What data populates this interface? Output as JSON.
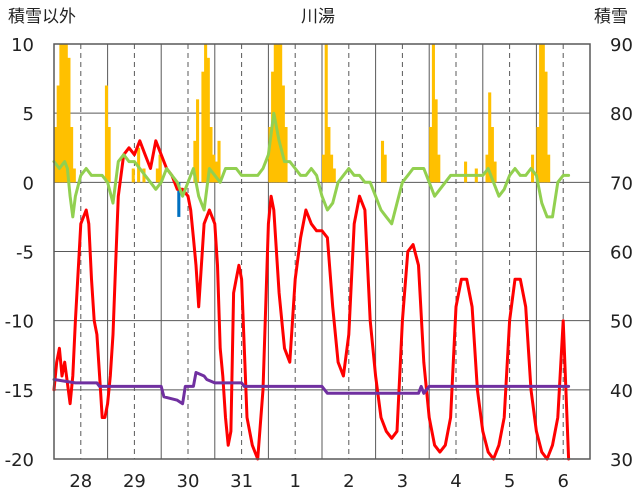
{
  "chart_data": {
    "type": "line",
    "title": "川湯",
    "left_axis_label": "積雪以外",
    "right_axis_label": "積雪",
    "ylim_left": [
      -20,
      10
    ],
    "yticks_left": [
      "10",
      "5",
      "0",
      "-5",
      "-10",
      "-15",
      "-20"
    ],
    "ylim_right": [
      30,
      90
    ],
    "yticks_right": [
      "90",
      "80",
      "70",
      "60",
      "50",
      "40",
      "30"
    ],
    "x_domain": [
      0,
      10
    ],
    "day_labels": [
      "28",
      "29",
      "30",
      "31",
      "1",
      "2",
      "3",
      "4",
      "5",
      "6"
    ],
    "grid": true,
    "colors": {
      "temperature": "#ff0000",
      "wind": "#92d050",
      "snow_depth": "#7030a0",
      "precip_snow": "#ffc000",
      "precip_rain": "#0070c0",
      "frame": "#595959",
      "grid": "#595959"
    },
    "precip_bars": [
      {
        "x": 0.0,
        "v": 4.0
      },
      {
        "x": 0.05,
        "v": 7.0
      },
      {
        "x": 0.1,
        "v": 10.0
      },
      {
        "x": 0.15,
        "v": 10.0
      },
      {
        "x": 0.2,
        "v": 10.0
      },
      {
        "x": 0.25,
        "v": 9.0
      },
      {
        "x": 0.3,
        "v": 4.0
      },
      {
        "x": 0.35,
        "v": 1.0
      },
      {
        "x": 0.95,
        "v": 7.0
      },
      {
        "x": 1.0,
        "v": 4.0
      },
      {
        "x": 1.45,
        "v": 1.0
      },
      {
        "x": 1.55,
        "v": 2.5
      },
      {
        "x": 1.65,
        "v": 1.0
      },
      {
        "x": 1.9,
        "v": 1.0
      },
      {
        "x": 1.95,
        "v": 2.0
      },
      {
        "x": 2.3,
        "v": -2.5,
        "kind": "rain"
      },
      {
        "x": 2.6,
        "v": 3.0
      },
      {
        "x": 2.65,
        "v": 6.0
      },
      {
        "x": 2.75,
        "v": 8.0
      },
      {
        "x": 2.8,
        "v": 10.0
      },
      {
        "x": 2.85,
        "v": 9.0
      },
      {
        "x": 2.9,
        "v": 4.0
      },
      {
        "x": 2.95,
        "v": 2.0
      },
      {
        "x": 3.0,
        "v": 1.5
      },
      {
        "x": 3.05,
        "v": 3.0
      },
      {
        "x": 4.0,
        "v": 4.0
      },
      {
        "x": 4.05,
        "v": 8.0
      },
      {
        "x": 4.1,
        "v": 10.0
      },
      {
        "x": 4.15,
        "v": 10.0
      },
      {
        "x": 4.2,
        "v": 10.0
      },
      {
        "x": 4.25,
        "v": 7.0
      },
      {
        "x": 4.3,
        "v": 4.0
      },
      {
        "x": 5.0,
        "v": 2.0
      },
      {
        "x": 5.05,
        "v": 10.0
      },
      {
        "x": 5.1,
        "v": 4.0
      },
      {
        "x": 5.15,
        "v": 2.0
      },
      {
        "x": 5.2,
        "v": 1.0
      },
      {
        "x": 6.1,
        "v": 3.0
      },
      {
        "x": 6.15,
        "v": 2.0
      },
      {
        "x": 7.0,
        "v": 4.0
      },
      {
        "x": 7.05,
        "v": 10.0
      },
      {
        "x": 7.1,
        "v": 6.0
      },
      {
        "x": 7.15,
        "v": 2.0
      },
      {
        "x": 7.65,
        "v": 1.5
      },
      {
        "x": 7.85,
        "v": 1.0
      },
      {
        "x": 8.05,
        "v": 2.0
      },
      {
        "x": 8.1,
        "v": 6.5
      },
      {
        "x": 8.15,
        "v": 4.0
      },
      {
        "x": 8.2,
        "v": 1.5
      },
      {
        "x": 8.9,
        "v": 2.0
      },
      {
        "x": 9.0,
        "v": 4.0
      },
      {
        "x": 9.05,
        "v": 10.0
      },
      {
        "x": 9.1,
        "v": 10.0
      },
      {
        "x": 9.15,
        "v": 8.0
      },
      {
        "x": 9.2,
        "v": 2.0
      }
    ],
    "series": [
      {
        "name": "",
        "color": "#ff0000",
        "axis": "left",
        "x": [
          0.0,
          0.05,
          0.1,
          0.15,
          0.2,
          0.3,
          0.35,
          0.4,
          0.5,
          0.6,
          0.65,
          0.7,
          0.75,
          0.8,
          0.85,
          0.9,
          0.95,
          1.0,
          1.05,
          1.1,
          1.15,
          1.2,
          1.3,
          1.4,
          1.5,
          1.6,
          1.7,
          1.8,
          1.9,
          2.0,
          2.1,
          2.2,
          2.3,
          2.4,
          2.5,
          2.55,
          2.6,
          2.65,
          2.7,
          2.75,
          2.8,
          2.9,
          3.0,
          3.05,
          3.1,
          3.15,
          3.2,
          3.25,
          3.3,
          3.35,
          3.4,
          3.45,
          3.5,
          3.55,
          3.6,
          3.7,
          3.8,
          3.9,
          4.0,
          4.05,
          4.1,
          4.2,
          4.3,
          4.4,
          4.5,
          4.6,
          4.7,
          4.8,
          4.9,
          5.0,
          5.1,
          5.2,
          5.3,
          5.4,
          5.5,
          5.6,
          5.7,
          5.8,
          5.9,
          6.0,
          6.1,
          6.2,
          6.3,
          6.4,
          6.5,
          6.6,
          6.7,
          6.8,
          6.9,
          7.0,
          7.1,
          7.2,
          7.3,
          7.4,
          7.5,
          7.6,
          7.7,
          7.8,
          7.9,
          8.0,
          8.1,
          8.2,
          8.3,
          8.4,
          8.5,
          8.6,
          8.7,
          8.8,
          8.9,
          9.0,
          9.1,
          9.2,
          9.3,
          9.4,
          9.5,
          9.6
        ],
        "values": [
          -15.0,
          -13.0,
          -12.0,
          -14.0,
          -13.0,
          -16.0,
          -14.0,
          -10.0,
          -3.0,
          -2.0,
          -3.0,
          -7.0,
          -10.0,
          -11.0,
          -14.0,
          -17.0,
          -17.0,
          -16.0,
          -14.0,
          -11.0,
          -6.0,
          -1.0,
          2.0,
          2.5,
          2.0,
          3.0,
          2.0,
          1.0,
          3.0,
          2.0,
          1.0,
          0.5,
          -0.5,
          -0.5,
          -1.0,
          -2.0,
          -4.0,
          -6.0,
          -9.0,
          -6.0,
          -3.0,
          -2.0,
          -3.0,
          -6.0,
          -12.0,
          -14.0,
          -17.0,
          -19.0,
          -18.0,
          -8.0,
          -7.0,
          -6.0,
          -7.0,
          -12.0,
          -17.0,
          -19.0,
          -20.0,
          -15.0,
          -3.0,
          -1.0,
          -2.0,
          -8.0,
          -12.0,
          -13.0,
          -7.0,
          -4.0,
          -2.0,
          -3.0,
          -3.5,
          -3.5,
          -4.0,
          -9.0,
          -13.0,
          -14.0,
          -11.0,
          -3.0,
          -1.0,
          -2.0,
          -10.0,
          -14.0,
          -17.0,
          -18.0,
          -18.5,
          -18.0,
          -10.0,
          -5.0,
          -4.5,
          -6.0,
          -13.0,
          -17.0,
          -19.0,
          -19.5,
          -19.0,
          -17.0,
          -9.0,
          -7.0,
          -7.0,
          -9.0,
          -15.0,
          -18.0,
          -19.5,
          -20.0,
          -19.0,
          -17.0,
          -10.0,
          -7.0,
          -7.0,
          -9.0,
          -15.0,
          -18.0,
          -19.5,
          -20.0,
          -19.0,
          -17.0,
          -10.0,
          -20.0
        ]
      },
      {
        "name": "",
        "color": "#92d050",
        "axis": "left",
        "x": [
          0.0,
          0.1,
          0.2,
          0.25,
          0.3,
          0.35,
          0.4,
          0.5,
          0.6,
          0.7,
          0.8,
          0.9,
          1.0,
          1.1,
          1.2,
          1.3,
          1.4,
          1.5,
          1.6,
          1.7,
          1.8,
          1.9,
          2.0,
          2.1,
          2.2,
          2.3,
          2.4,
          2.5,
          2.6,
          2.7,
          2.8,
          2.9,
          3.0,
          3.1,
          3.2,
          3.3,
          3.4,
          3.5,
          3.6,
          3.7,
          3.8,
          3.9,
          4.0,
          4.1,
          4.2,
          4.3,
          4.4,
          4.5,
          4.6,
          4.7,
          4.8,
          4.9,
          5.0,
          5.1,
          5.2,
          5.3,
          5.4,
          5.5,
          5.6,
          5.7,
          5.8,
          5.9,
          6.0,
          6.1,
          6.2,
          6.3,
          6.4,
          6.5,
          6.6,
          6.7,
          6.8,
          6.9,
          7.0,
          7.1,
          7.2,
          7.3,
          7.4,
          7.5,
          7.6,
          7.7,
          7.8,
          7.9,
          8.0,
          8.1,
          8.2,
          8.3,
          8.4,
          8.5,
          8.6,
          8.7,
          8.8,
          8.9,
          9.0,
          9.1,
          9.2,
          9.3,
          9.4,
          9.5,
          9.6
        ],
        "values": [
          1.5,
          1.0,
          1.5,
          1.0,
          -1.0,
          -2.5,
          -1.0,
          0.5,
          1.0,
          0.5,
          0.5,
          0.5,
          0.0,
          -1.5,
          1.5,
          2.0,
          1.5,
          1.5,
          1.0,
          0.5,
          0.0,
          -0.5,
          0.0,
          1.0,
          0.5,
          0.0,
          -1.0,
          0.0,
          1.0,
          -1.0,
          -2.0,
          1.0,
          0.5,
          0.0,
          1.0,
          1.0,
          1.0,
          0.5,
          0.5,
          0.5,
          0.5,
          1.0,
          2.0,
          5.0,
          3.0,
          1.5,
          1.5,
          1.0,
          0.5,
          0.5,
          1.0,
          0.5,
          -1.0,
          -2.0,
          -1.5,
          0.0,
          0.5,
          1.0,
          0.5,
          0.5,
          0.0,
          0.0,
          -1.0,
          -2.0,
          -2.5,
          -3.0,
          -1.5,
          0.0,
          0.5,
          1.0,
          1.0,
          1.0,
          0.0,
          -1.0,
          -0.5,
          0.0,
          0.5,
          0.5,
          0.5,
          0.5,
          0.5,
          0.5,
          0.5,
          1.0,
          0.0,
          -1.0,
          -0.5,
          0.5,
          1.0,
          0.5,
          0.5,
          1.0,
          0.5,
          -1.5,
          -2.5,
          -2.5,
          0.0,
          0.5,
          0.5
        ]
      },
      {
        "name": "",
        "color": "#7030a0",
        "axis": "right",
        "x": [
          0.0,
          0.4,
          0.8,
          0.85,
          1.0,
          1.4,
          2.0,
          2.05,
          2.3,
          2.4,
          2.45,
          2.6,
          2.65,
          2.8,
          2.85,
          3.0,
          3.5,
          3.55,
          5.0,
          5.1,
          5.2,
          5.3,
          5.5,
          5.6,
          6.3,
          6.5,
          6.8,
          6.85,
          6.9,
          7.0,
          7.8,
          7.85,
          7.9,
          8.0,
          8.8,
          8.85,
          8.9,
          9.0,
          9.6
        ],
        "values": [
          41.5,
          41.0,
          41.0,
          40.5,
          40.5,
          40.5,
          40.5,
          39.0,
          38.5,
          38.0,
          40.5,
          40.5,
          42.5,
          42.0,
          41.5,
          41.0,
          41.0,
          40.5,
          40.5,
          39.5,
          39.5,
          39.5,
          39.5,
          39.5,
          39.5,
          39.5,
          39.5,
          40.5,
          39.5,
          40.5,
          40.5,
          40.5,
          40.5,
          40.5,
          40.5,
          40.5,
          40.5,
          40.5,
          40.5
        ]
      }
    ]
  }
}
